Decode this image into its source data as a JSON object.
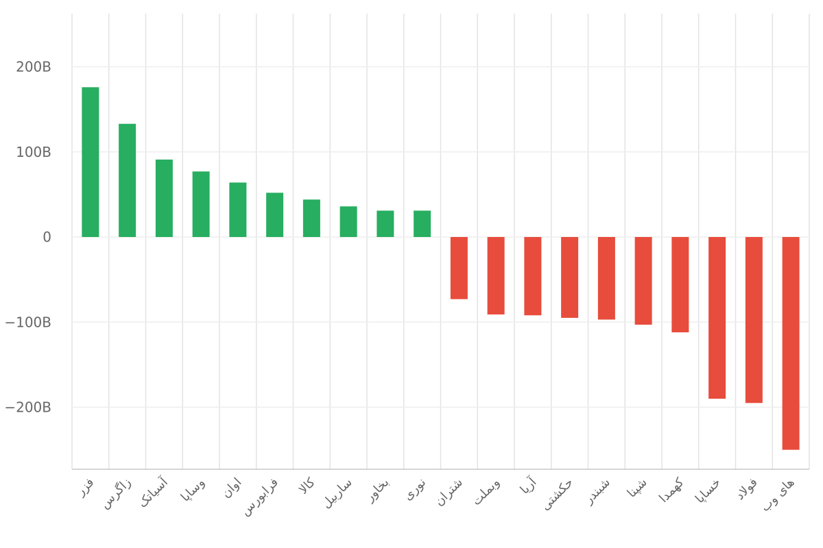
{
  "chart_data": {
    "type": "bar",
    "title": "",
    "xlabel": "",
    "ylabel": "",
    "categories": [
      "فزر",
      "زاگرس",
      "آسیاتک",
      "وساپا",
      "اوان",
      "فرابورس",
      "کالا",
      "ساربیل",
      "بخاور",
      "نوری",
      "شتران",
      "وبملت",
      "آریا",
      "حکشتی",
      "شبندر",
      "شپنا",
      "کهمدا",
      "خساپا",
      "فولاد",
      "های وب"
    ],
    "values": [
      176,
      133,
      91,
      77,
      64,
      52,
      44,
      36,
      31,
      31,
      -73,
      -91,
      -92,
      -95,
      -97,
      -103,
      -112,
      -190,
      -195,
      -250
    ],
    "ylim": [
      -270,
      260
    ],
    "yticks": [
      200,
      100,
      0,
      -100,
      -200
    ],
    "ytick_labels": [
      "200B",
      "100B",
      "0",
      "−100B",
      "−200B"
    ],
    "grid": true,
    "positive_color": "#27ae60",
    "negative_color": "#e74c3c"
  }
}
